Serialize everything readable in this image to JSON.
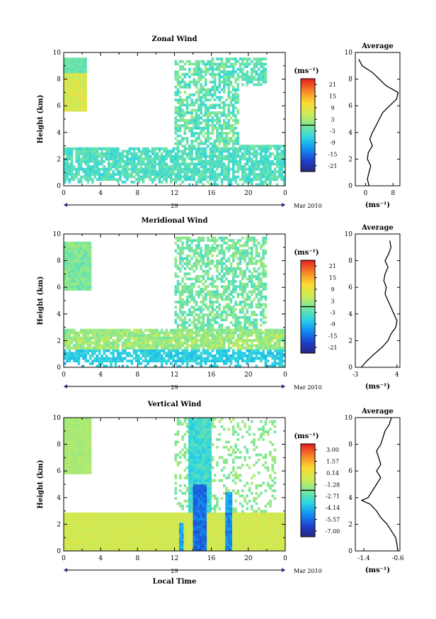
{
  "chart_data": [
    {
      "type": "heatmap",
      "title": "Zonal Wind",
      "ylabel": "Height (km)",
      "xlabel": "",
      "x_ticks": [
        "0",
        "4",
        "8",
        "12",
        "16",
        "20",
        "0"
      ],
      "y_ticks": [
        "0",
        "2",
        "4",
        "6",
        "8",
        "10"
      ],
      "xlim": [
        0,
        24
      ],
      "ylim": [
        0,
        10
      ],
      "date_label": "29",
      "date_suffix": "Mar 2010",
      "colorbar": {
        "unit": "(ms⁻¹)",
        "ticks": [
          "21",
          "15",
          "9",
          "3",
          "-3",
          "-9",
          "-15",
          "-21"
        ]
      },
      "average": {
        "title": "Average",
        "xlabel": "(ms⁻¹)",
        "x_ticks": [
          "0",
          "8"
        ],
        "xlim": [
          -3,
          10
        ],
        "y_ticks": [
          "0",
          "2",
          "4",
          "6",
          "8",
          "10"
        ],
        "profile": [
          [
            0,
            1
          ],
          [
            0.5,
            0.5
          ],
          [
            1,
            1
          ],
          [
            1.5,
            1.5
          ],
          [
            2,
            0.5
          ],
          [
            2.5,
            0.8
          ],
          [
            3,
            2
          ],
          [
            3.5,
            1.2
          ],
          [
            4,
            2
          ],
          [
            4.5,
            3
          ],
          [
            5,
            4
          ],
          [
            5.5,
            5
          ],
          [
            6,
            7
          ],
          [
            6.5,
            9
          ],
          [
            7,
            9.5
          ],
          [
            7.5,
            6
          ],
          [
            8,
            4
          ],
          [
            8.5,
            2
          ],
          [
            9,
            -1
          ],
          [
            9.5,
            -2
          ]
        ]
      }
    },
    {
      "type": "heatmap",
      "title": "Meridional Wind",
      "ylabel": "Height (km)",
      "xlabel": "",
      "x_ticks": [
        "0",
        "4",
        "8",
        "12",
        "16",
        "20",
        "0"
      ],
      "y_ticks": [
        "0",
        "2",
        "4",
        "6",
        "8",
        "10"
      ],
      "xlim": [
        0,
        24
      ],
      "ylim": [
        0,
        10
      ],
      "date_label": "29",
      "date_suffix": "Mar 2010",
      "colorbar": {
        "unit": "(ms⁻¹)",
        "ticks": [
          "21",
          "15",
          "9",
          "3",
          "-3",
          "-9",
          "-15",
          "-21"
        ]
      },
      "average": {
        "title": "Average",
        "xlabel": "(ms⁻¹)",
        "x_ticks": [
          "-3",
          "4"
        ],
        "xlim": [
          -3,
          4.5
        ],
        "y_ticks": [
          "0",
          "2",
          "4",
          "6",
          "8",
          "10"
        ],
        "profile": [
          [
            0,
            -2
          ],
          [
            0.5,
            -1
          ],
          [
            1,
            0.2
          ],
          [
            1.5,
            1.5
          ],
          [
            2,
            2.5
          ],
          [
            2.5,
            3
          ],
          [
            3,
            3.8
          ],
          [
            3.5,
            4
          ],
          [
            4,
            3.5
          ],
          [
            4.5,
            3
          ],
          [
            5,
            2.5
          ],
          [
            5.5,
            2
          ],
          [
            6,
            2.2
          ],
          [
            6.5,
            1.8
          ],
          [
            7,
            2
          ],
          [
            7.5,
            2.5
          ],
          [
            8,
            2
          ],
          [
            8.5,
            2.6
          ],
          [
            9,
            3
          ],
          [
            9.5,
            2.8
          ]
        ]
      }
    },
    {
      "type": "heatmap",
      "title": "Vertical Wind",
      "ylabel": "Height (km)",
      "xlabel": "Local Time",
      "x_ticks": [
        "0",
        "4",
        "8",
        "12",
        "16",
        "20",
        "0"
      ],
      "y_ticks": [
        "0",
        "2",
        "4",
        "6",
        "8",
        "10"
      ],
      "xlim": [
        0,
        24
      ],
      "ylim": [
        0,
        10
      ],
      "date_label": "29",
      "date_suffix": "Mar 2010",
      "colorbar": {
        "unit": "(ms⁻¹)",
        "ticks": [
          "3.00",
          "1.57",
          "0.14",
          "-1.28",
          "-2.71",
          "-4.14",
          "-5.57",
          "-7.00"
        ]
      },
      "average": {
        "title": "Average",
        "xlabel": "(ms⁻¹)",
        "x_ticks": [
          "-1.4",
          "-0.6"
        ],
        "xlim": [
          -1.6,
          -0.55
        ],
        "y_ticks": [
          "0",
          "2",
          "4",
          "6",
          "8",
          "10"
        ],
        "profile": [
          [
            0,
            -0.6
          ],
          [
            0.5,
            -0.62
          ],
          [
            1,
            -0.65
          ],
          [
            1.5,
            -0.75
          ],
          [
            2,
            -0.85
          ],
          [
            2.5,
            -1.0
          ],
          [
            3,
            -1.1
          ],
          [
            3.5,
            -1.25
          ],
          [
            3.8,
            -1.45
          ],
          [
            4,
            -1.3
          ],
          [
            4.5,
            -1.2
          ],
          [
            5,
            -1.1
          ],
          [
            5.5,
            -1.0
          ],
          [
            6,
            -1.1
          ],
          [
            6.5,
            -1.0
          ],
          [
            7,
            -1.05
          ],
          [
            7.5,
            -1.1
          ],
          [
            8,
            -1.0
          ],
          [
            8.5,
            -0.95
          ],
          [
            9,
            -0.9
          ],
          [
            9.5,
            -0.8
          ],
          [
            10,
            -0.75
          ]
        ]
      }
    }
  ]
}
